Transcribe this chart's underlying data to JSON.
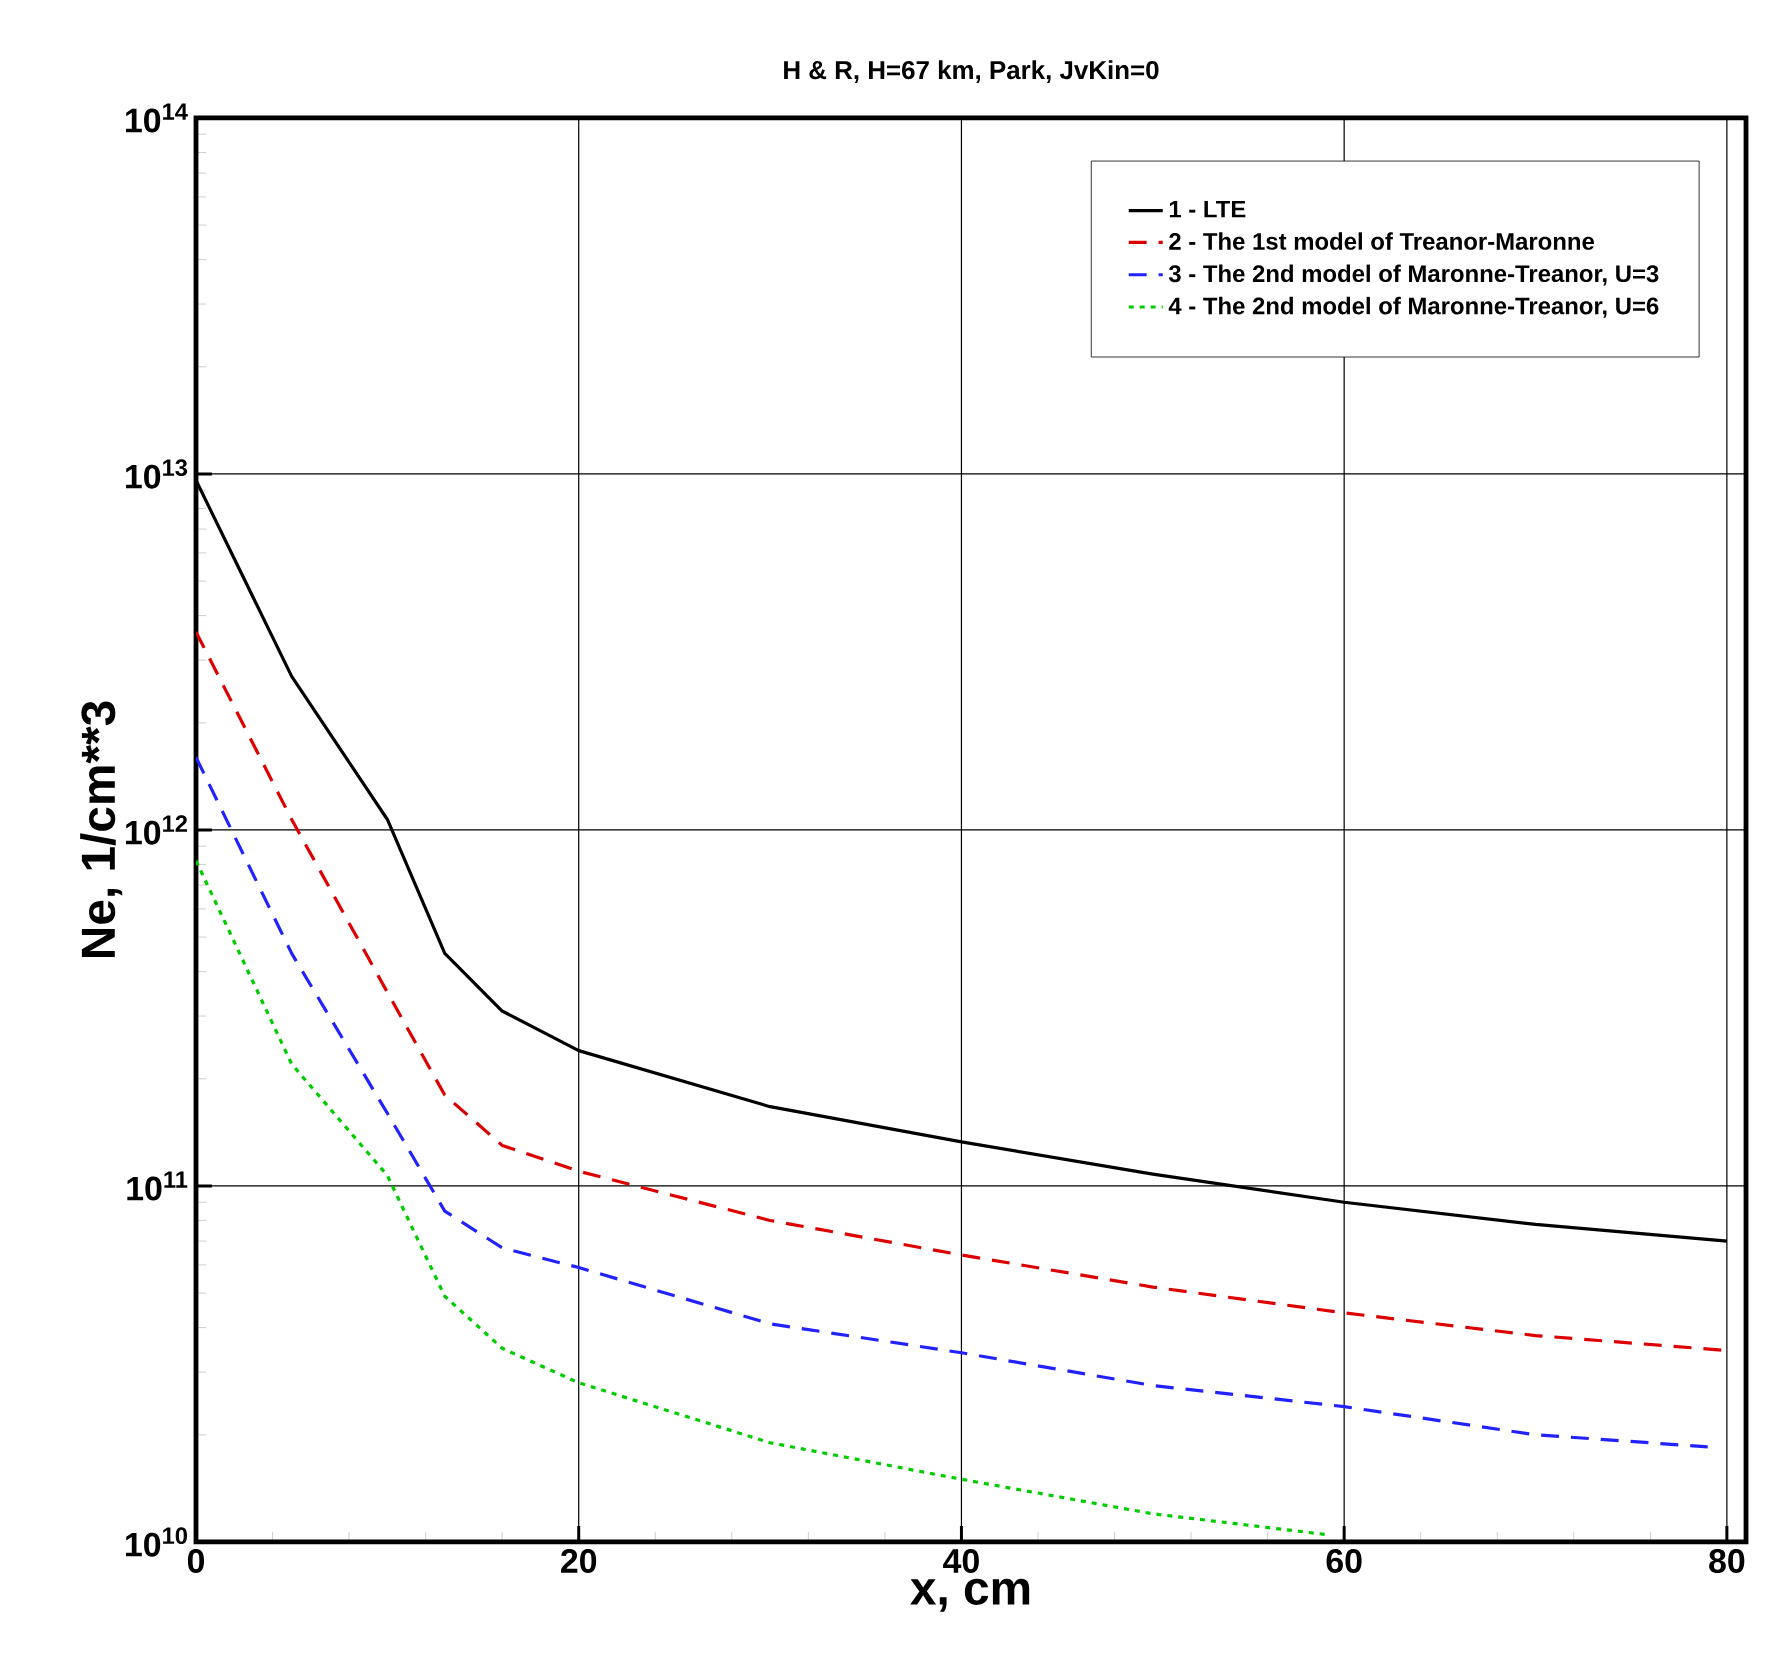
{
  "chart_data": {
    "type": "line",
    "title": "H & R, H=67 km, Park, JvKin=0",
    "xlabel": "x, cm",
    "ylabel": "Ne, 1/cm**3",
    "log": "y",
    "grid": true,
    "legend": "top right",
    "marker": "none",
    "xlim": [
      0,
      81
    ],
    "ylim": [
      10000000000.0,
      100000000000000.0
    ],
    "xticks": [
      0,
      20,
      40,
      60,
      80
    ],
    "yticks": [
      {
        "value": 10000000000.0,
        "label": "10$^{10}$"
      },
      {
        "value": 100000000000.0,
        "label": "10$^{11}$"
      },
      {
        "value": 1000000000000.0,
        "label": "10$^{12}$"
      },
      {
        "value": 10000000000000.0,
        "label": "10$^{13}$"
      },
      {
        "value": 100000000000000.0,
        "label": "10$^{14}$"
      }
    ],
    "x": [
      0,
      5,
      10,
      13,
      16,
      20,
      30,
      40,
      50,
      60,
      70,
      80
    ],
    "series": [
      {
        "name": "1 - LTE",
        "color": "#000000",
        "line_style": "solid",
        "values": [
          9600000000000.0,
          2700000000000.0,
          1070000000000.0,
          450000000000.0,
          310000000000.0,
          240000000000.0,
          167000000000.0,
          133000000000.0,
          108000000000.0,
          90000000000.0,
          78000000000.0,
          70000000000.0
        ]
      },
      {
        "name": "2 - The 1st model of Treanor-Maronne",
        "color": "#dd0000",
        "line_style": "dashed",
        "values": [
          3600000000000.0,
          1070000000000.0,
          350000000000.0,
          180000000000.0,
          130000000000.0,
          110000000000.0,
          80000000000.0,
          64000000000.0,
          52000000000.0,
          44000000000.0,
          38000000000.0,
          34500000000.0
        ]
      },
      {
        "name": "3 - The 2nd model of Maronne-Treanor, U=3",
        "color": "#2222ff",
        "line_style": "dashed",
        "x": [
          0,
          5,
          10,
          13,
          16,
          20,
          30,
          40,
          50,
          60,
          70,
          79
        ],
        "values": [
          1600000000000.0,
          450000000000.0,
          160000000000.0,
          85000000000.0,
          67000000000.0,
          59000000000.0,
          41000000000.0,
          34000000000.0,
          27500000000.0,
          24000000000.0,
          20000000000.0,
          18500000000.0
        ]
      },
      {
        "name": "4 - The 2nd model of Maronne-Treanor, U=6",
        "color": "#00cc00",
        "line_style": "dotted",
        "x": [
          0,
          5,
          10,
          13,
          16,
          20,
          30,
          40,
          50,
          59
        ],
        "values": [
          820000000000.0,
          220000000000.0,
          107000000000.0,
          49000000000.0,
          35000000000.0,
          28000000000.0,
          19000000000.0,
          15000000000.0,
          12000000000.0,
          10500000000.0
        ]
      }
    ]
  }
}
